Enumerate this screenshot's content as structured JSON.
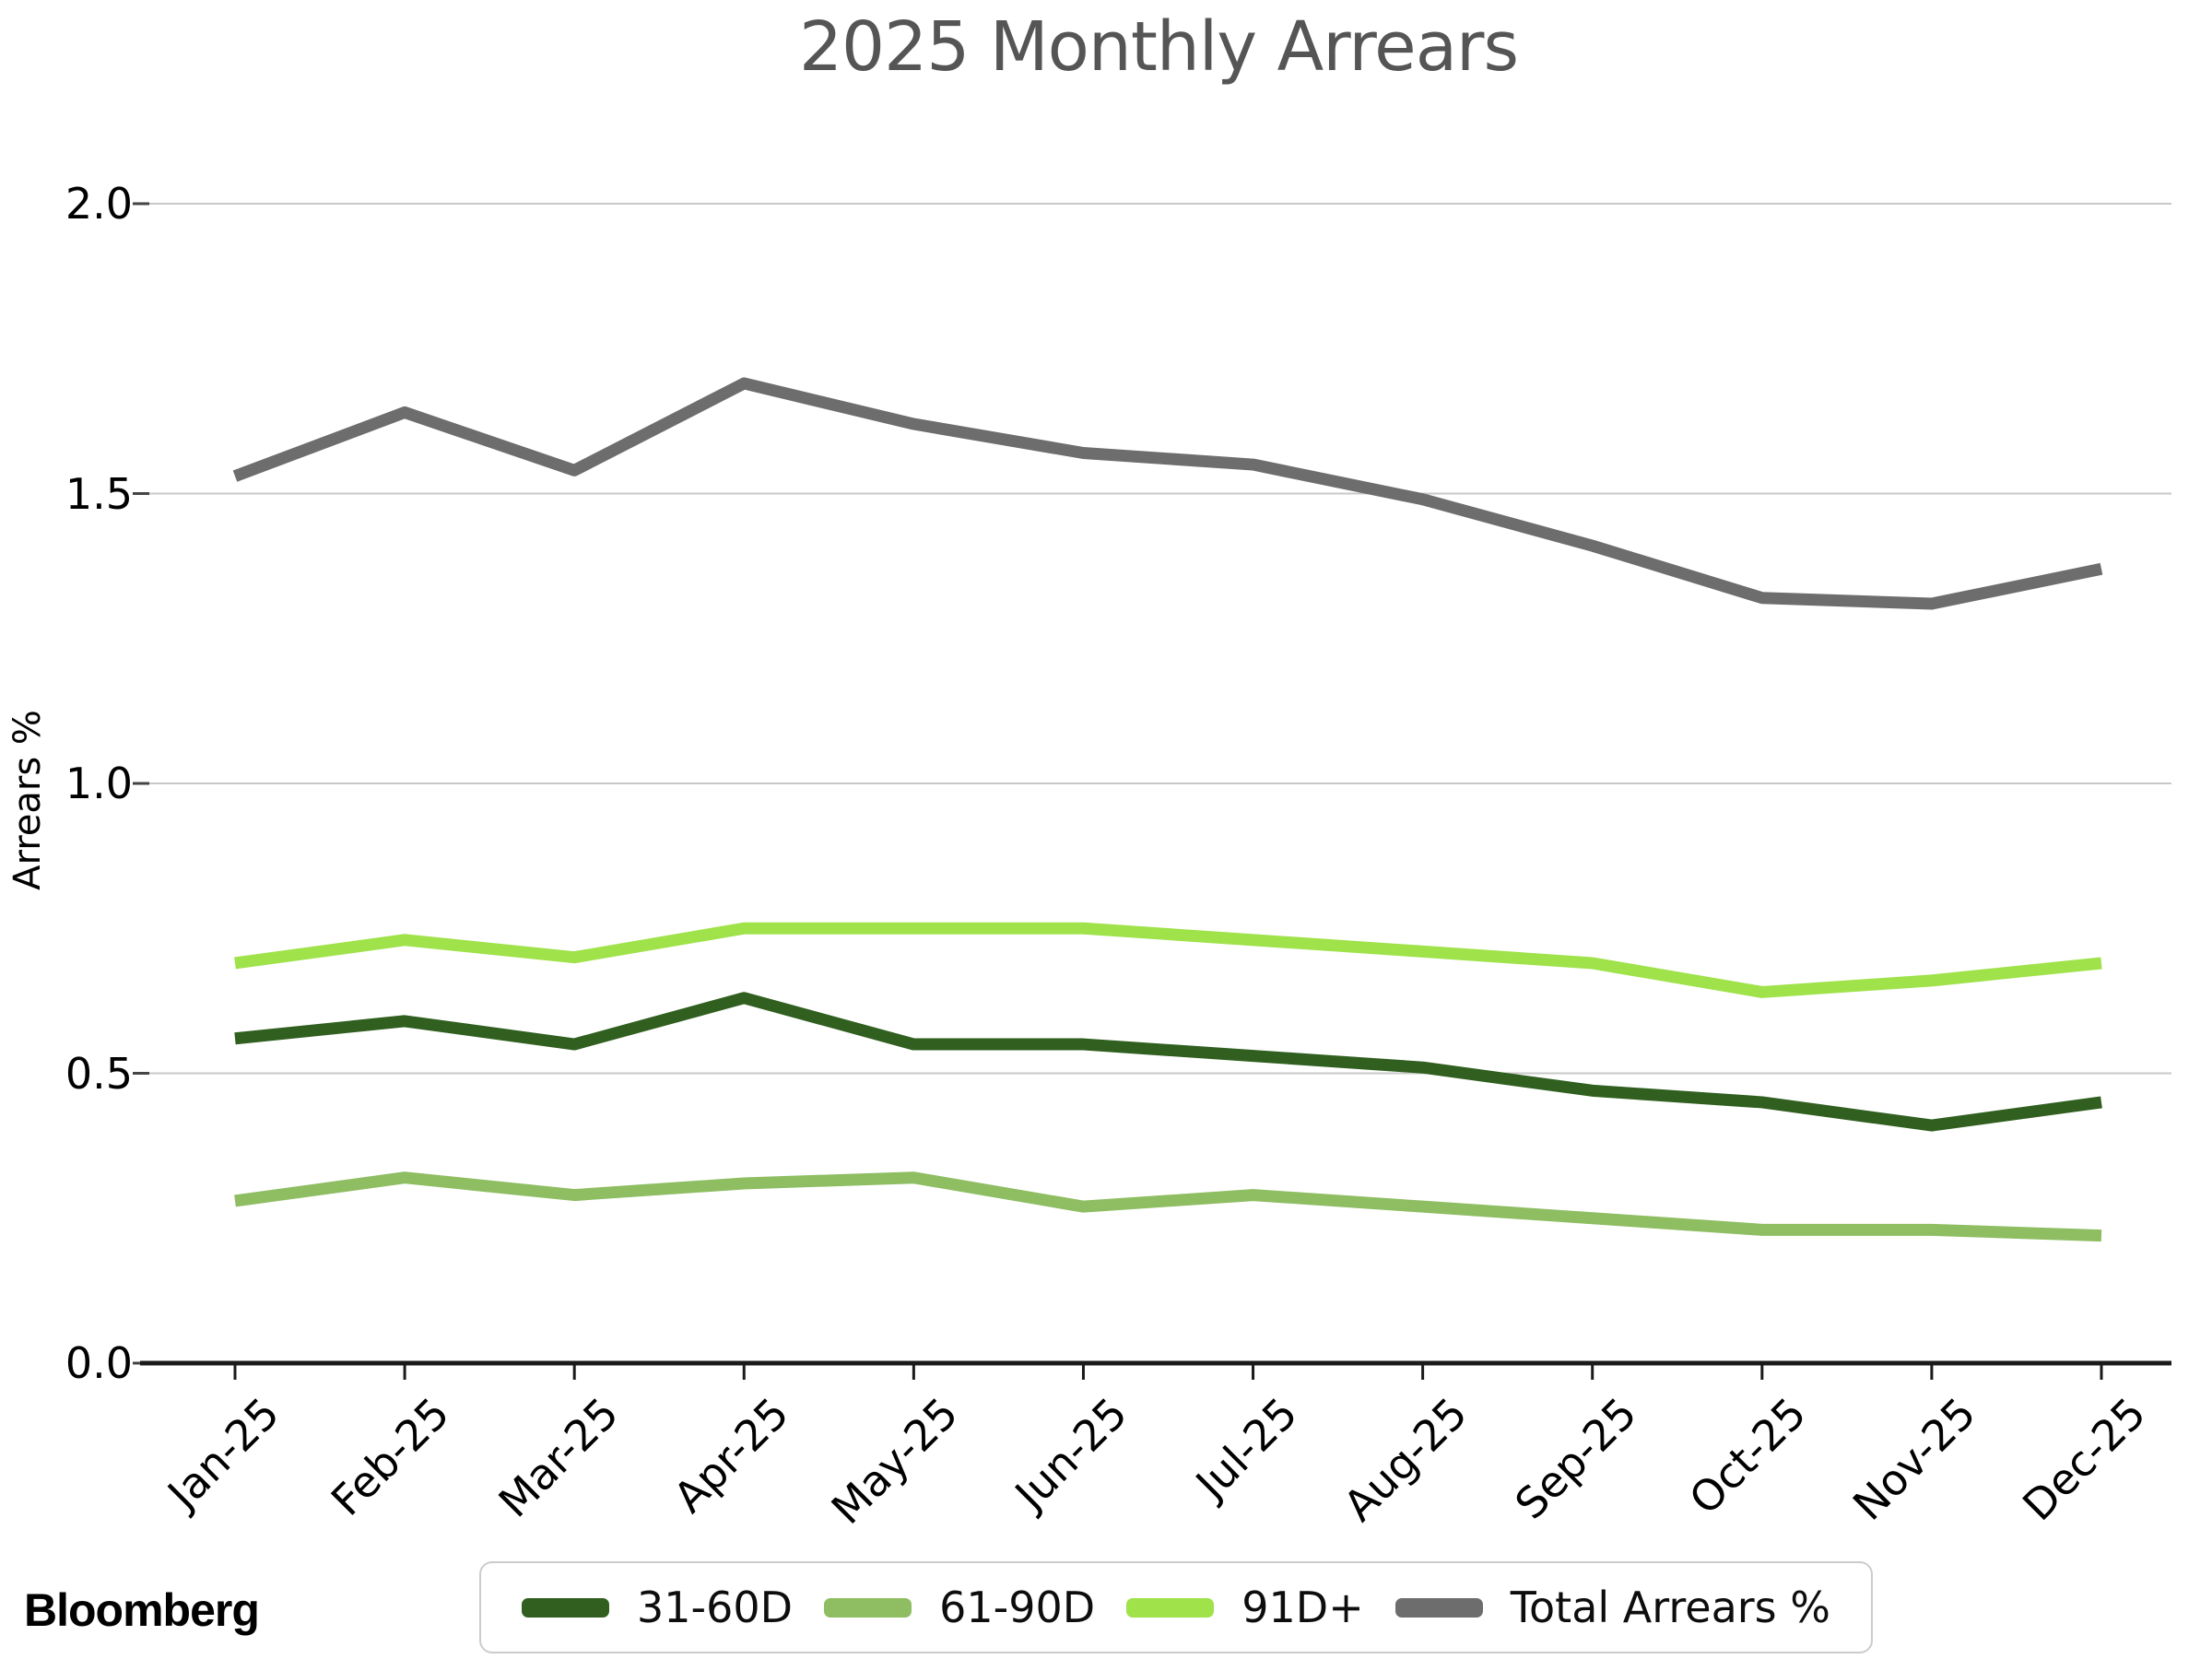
{
  "header": {
    "title": "2025 Monthly Arrears"
  },
  "branding": {
    "logo_text": "Bloomberg"
  },
  "colors": {
    "title": "#555555",
    "gridline": "#c8c8c8",
    "axis": "#1a1a1a",
    "tick": "#444444",
    "series_31_60d": "#305f1f",
    "series_61_90d": "#8ebd62",
    "series_91d_plus": "#9fe24a",
    "series_total": "#6d6d6d"
  },
  "chart_data": {
    "type": "line",
    "title": "2025 Monthly Arrears",
    "xlabel": "",
    "ylabel": "Arrears %",
    "categories": [
      "Jan-25",
      "Feb-25",
      "Mar-25",
      "Apr-25",
      "May-25",
      "Jun-25",
      "Jul-25",
      "Aug-25",
      "Sep-25",
      "Oct-25",
      "Nov-25",
      "Dec-25"
    ],
    "ytick_labels": [
      "0.0",
      "0.5",
      "1.0",
      "1.5",
      "2.0"
    ],
    "yticks": [
      0.0,
      0.5,
      1.0,
      1.5,
      2.0
    ],
    "ylim": [
      0.0,
      2.05
    ],
    "grid": "horizontal",
    "legend_position": "bottom-center",
    "series": [
      {
        "name": "31-60D",
        "color": "#305f1f",
        "values": [
          0.56,
          0.59,
          0.55,
          0.63,
          0.55,
          0.55,
          0.53,
          0.51,
          0.47,
          0.45,
          0.41,
          0.45
        ]
      },
      {
        "name": "61-90D",
        "color": "#8ebd62",
        "values": [
          0.28,
          0.32,
          0.29,
          0.31,
          0.32,
          0.27,
          0.29,
          0.27,
          0.25,
          0.23,
          0.23,
          0.22
        ]
      },
      {
        "name": "91D+",
        "color": "#9fe24a",
        "values": [
          0.69,
          0.73,
          0.7,
          0.75,
          0.75,
          0.75,
          0.73,
          0.71,
          0.69,
          0.64,
          0.66,
          0.69
        ]
      },
      {
        "name": "Total Arrears %",
        "color": "#6d6d6d",
        "values": [
          1.53,
          1.64,
          1.54,
          1.69,
          1.62,
          1.57,
          1.55,
          1.49,
          1.41,
          1.32,
          1.31,
          1.37
        ]
      }
    ]
  }
}
